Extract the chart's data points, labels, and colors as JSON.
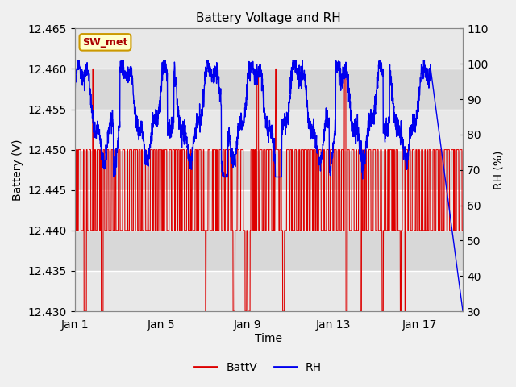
{
  "title": "Battery Voltage and RH",
  "xlabel": "Time",
  "ylabel_left": "Battery (V)",
  "ylabel_right": "RH (%)",
  "annotation": "SW_met",
  "ylim_left": [
    12.43,
    12.465
  ],
  "ylim_right": [
    30,
    110
  ],
  "yticks_left": [
    12.43,
    12.435,
    12.44,
    12.445,
    12.45,
    12.455,
    12.46,
    12.465
  ],
  "yticks_right": [
    30,
    40,
    50,
    60,
    70,
    80,
    90,
    100,
    110
  ],
  "xtick_labels": [
    "Jan 1",
    "Jan 5",
    "Jan 9",
    "Jan 13",
    "Jan 17"
  ],
  "xtick_positions": [
    0,
    4,
    8,
    12,
    16
  ],
  "total_days": 18,
  "color_battv": "#dd0000",
  "color_rh": "#0000ee",
  "bg_color": "#f0f0f0",
  "plot_bg_color": "#e8e8e8",
  "grid_color": "#ffffff",
  "band_color_light": "#e8e8e8",
  "band_color_dark": "#d8d8d8",
  "annotation_bg": "#ffffcc",
  "annotation_border": "#cc9900",
  "annotation_text_color": "#aa0000",
  "legend_line_color_battv": "#dd0000",
  "legend_line_color_rh": "#0000ee",
  "seed": 12345,
  "n_days": 18,
  "n_pts": 2160
}
